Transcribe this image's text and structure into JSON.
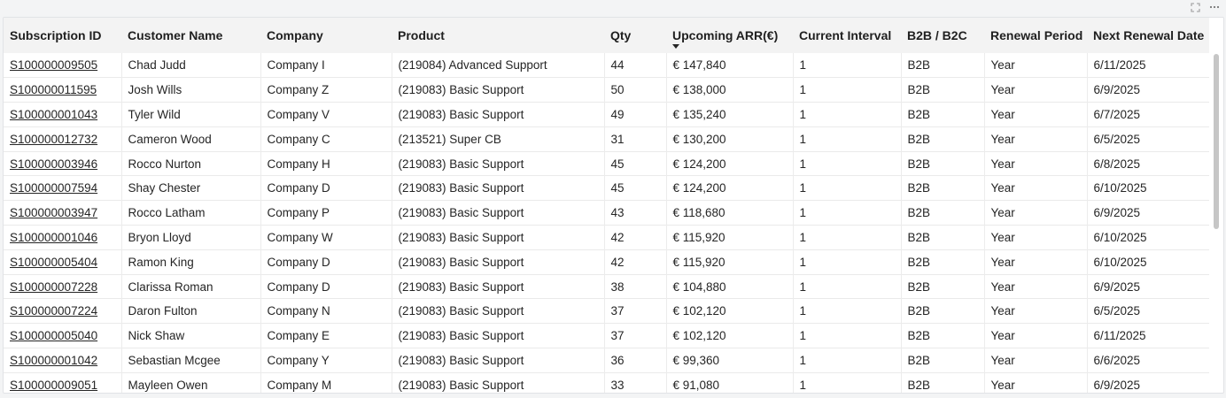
{
  "table": {
    "columns": [
      "Subscription ID",
      "Customer Name",
      "Company",
      "Product",
      "Qty",
      "Upcoming ARR(€)",
      "Current Interval",
      "B2B / B2C",
      "Renewal Period",
      "Next Renewal Date"
    ],
    "sorted_column": "Upcoming ARR(€)",
    "sort_direction": "descending",
    "rows": [
      [
        "S100000009505",
        "Chad Judd",
        "Company I",
        "(219084) Advanced Support",
        "44",
        "€ 147,840",
        "1",
        "B2B",
        "Year",
        "6/11/2025"
      ],
      [
        "S100000011595",
        "Josh Wills",
        "Company Z",
        "(219083) Basic Support",
        "50",
        "€ 138,000",
        "1",
        "B2B",
        "Year",
        "6/9/2025"
      ],
      [
        "S100000001043",
        "Tyler Wild",
        "Company V",
        "(219083) Basic Support",
        "49",
        "€ 135,240",
        "1",
        "B2B",
        "Year",
        "6/7/2025"
      ],
      [
        "S100000012732",
        "Cameron Wood",
        "Company C",
        "(213521) Super CB",
        "31",
        "€ 130,200",
        "1",
        "B2B",
        "Year",
        "6/5/2025"
      ],
      [
        "S100000003946",
        "Rocco Nurton",
        "Company H",
        "(219083) Basic Support",
        "45",
        "€ 124,200",
        "1",
        "B2B",
        "Year",
        "6/8/2025"
      ],
      [
        "S100000007594",
        "Shay Chester",
        "Company D",
        "(219083) Basic Support",
        "45",
        "€ 124,200",
        "1",
        "B2B",
        "Year",
        "6/10/2025"
      ],
      [
        "S100000003947",
        "Rocco Latham",
        "Company P",
        "(219083) Basic Support",
        "43",
        "€ 118,680",
        "1",
        "B2B",
        "Year",
        "6/9/2025"
      ],
      [
        "S100000001046",
        "Bryon Lloyd",
        "Company W",
        "(219083) Basic Support",
        "42",
        "€ 115,920",
        "1",
        "B2B",
        "Year",
        "6/10/2025"
      ],
      [
        "S100000005404",
        "Ramon King",
        "Company D",
        "(219083) Basic Support",
        "42",
        "€ 115,920",
        "1",
        "B2B",
        "Year",
        "6/10/2025"
      ],
      [
        "S100000007228",
        "Clarissa Roman",
        "Company D",
        "(219083) Basic Support",
        "38",
        "€ 104,880",
        "1",
        "B2B",
        "Year",
        "6/9/2025"
      ],
      [
        "S100000007224",
        "Daron Fulton",
        "Company N",
        "(219083) Basic Support",
        "37",
        "€ 102,120",
        "1",
        "B2B",
        "Year",
        "6/5/2025"
      ],
      [
        "S100000005040",
        "Nick Shaw",
        "Company E",
        "(219083) Basic Support",
        "37",
        "€ 102,120",
        "1",
        "B2B",
        "Year",
        "6/11/2025"
      ],
      [
        "S100000001042",
        "Sebastian Mcgee",
        "Company Y",
        "(219083) Basic Support",
        "36",
        "€ 99,360",
        "1",
        "B2B",
        "Year",
        "6/6/2025"
      ],
      [
        "S100000009051",
        "Mayleen Owen",
        "Company M",
        "(219083) Basic Support",
        "33",
        "€ 91,080",
        "1",
        "B2B",
        "Year",
        "6/9/2025"
      ]
    ]
  },
  "icons": {
    "focus_mode": "expand-icon",
    "more_options": "more-options-icon"
  },
  "colors": {
    "header_bg": "#f3f3f3",
    "text": "#252525",
    "border": "#eaeaea",
    "scrollbar": "#c6c6c6"
  }
}
